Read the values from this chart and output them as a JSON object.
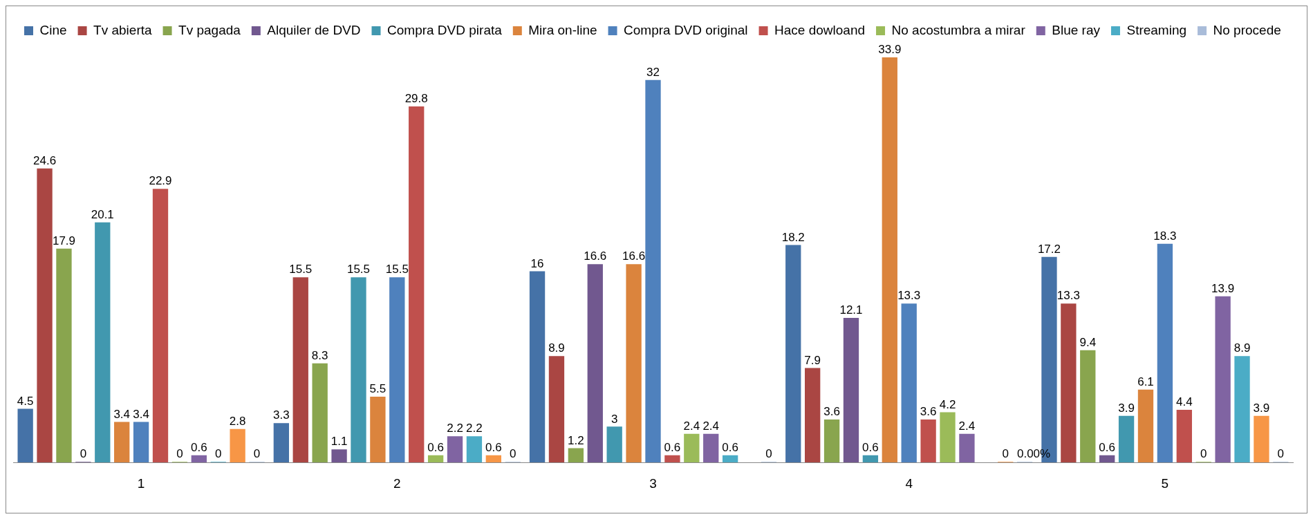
{
  "chart_data": {
    "type": "bar",
    "categories": [
      "1",
      "2",
      "3",
      "4",
      "5"
    ],
    "tick_labels": "x",
    "grid": false,
    "legend": "top",
    "series": [
      {
        "name": "Cine",
        "color": "#4572a7",
        "values": [
          4.5,
          3.3,
          16,
          18.2,
          17.2
        ],
        "value_labels": [
          "4.5",
          "3.3",
          "16",
          "18.2",
          "17.2"
        ]
      },
      {
        "name": "Tv abierta",
        "color": "#aa4643",
        "values": [
          24.6,
          15.5,
          8.9,
          7.9,
          13.3
        ],
        "value_labels": [
          "24.6",
          "15.5",
          "8.9",
          "7.9",
          "13.3"
        ]
      },
      {
        "name": "Tv pagada",
        "color": "#89a54e",
        "values": [
          17.9,
          8.3,
          1.2,
          3.6,
          9.4
        ],
        "value_labels": [
          "17.9",
          "8.3",
          "1.2",
          "3.6",
          "9.4"
        ]
      },
      {
        "name": "Alquiler de DVD",
        "color": "#71588f",
        "values": [
          0,
          1.1,
          16.6,
          12.1,
          0.6
        ],
        "value_labels": [
          "0",
          "1.1",
          "16.6",
          "12.1",
          "0.6"
        ]
      },
      {
        "name": "Compra DVD pirata",
        "color": "#4198af",
        "values": [
          20.1,
          15.5,
          3,
          0.6,
          3.9
        ],
        "value_labels": [
          "20.1",
          "15.5",
          "3",
          "0.6",
          "3.9"
        ]
      },
      {
        "name": "Mira on-line",
        "color": "#db843d",
        "values": [
          3.4,
          5.5,
          16.6,
          33.9,
          6.1
        ],
        "value_labels": [
          "3.4",
          "5.5",
          "16.6",
          "33.9",
          "6.1"
        ]
      },
      {
        "name": "Compra DVD original",
        "color": "#4f81bd",
        "values": [
          3.4,
          15.5,
          32,
          13.3,
          18.3
        ],
        "value_labels": [
          "3.4",
          "15.5",
          "32",
          "13.3",
          "18.3"
        ]
      },
      {
        "name": "Hace dowloand",
        "color": "#c0504d",
        "values": [
          22.9,
          29.8,
          0.6,
          3.6,
          4.4
        ],
        "value_labels": [
          "22.9",
          "29.8",
          "0.6",
          "3.6",
          "4.4"
        ]
      },
      {
        "name": "No acostumbra a mirar",
        "color": "#9bbb59",
        "values": [
          0,
          0.6,
          2.4,
          4.2,
          0
        ],
        "value_labels": [
          "0",
          "0.6",
          "2.4",
          "4.2",
          "0"
        ]
      },
      {
        "name": "Blue ray",
        "color": "#8064a2",
        "values": [
          0.6,
          2.2,
          2.4,
          2.4,
          13.9
        ],
        "value_labels": [
          "0.6",
          "2.2",
          "2.4",
          "2.4",
          "13.9"
        ]
      },
      {
        "name": "Streaming",
        "color": "#4bacc6",
        "values": [
          0,
          2.2,
          0.6,
          null,
          8.9
        ],
        "value_labels": [
          "0",
          "2.2",
          "0.6",
          null,
          "8.9"
        ]
      },
      {
        "color": "#f79646",
        "values": [
          2.8,
          0.6,
          null,
          0,
          3.9
        ],
        "value_labels": [
          "2.8",
          "0.6",
          null,
          "0",
          "3.9"
        ]
      },
      {
        "name": "No procede",
        "color": "#a9bcd9",
        "values": [
          0,
          0,
          0,
          0,
          0
        ],
        "value_labels": [
          "0",
          "0",
          "0",
          "0.00%",
          "0"
        ]
      }
    ]
  }
}
